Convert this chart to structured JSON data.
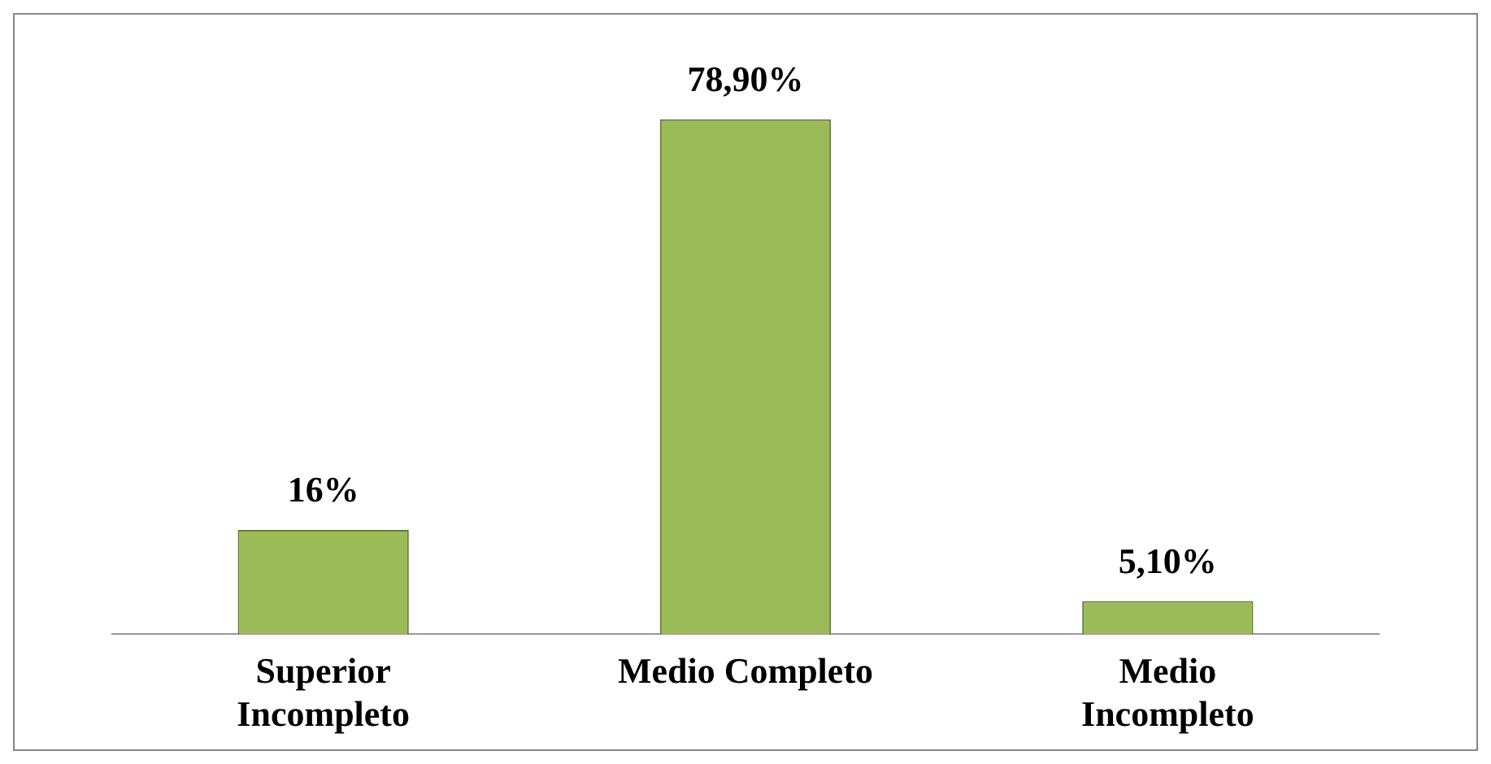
{
  "chart_data": {
    "type": "bar",
    "categories": [
      "Superior Incompleto",
      "Medio Completo",
      "Medio Incompleto"
    ],
    "values": [
      16,
      78.9,
      5.1
    ],
    "value_labels": [
      "16%",
      "78,90%",
      "5,10%"
    ],
    "color": "#9bbb59",
    "grid": false,
    "legend": false
  }
}
